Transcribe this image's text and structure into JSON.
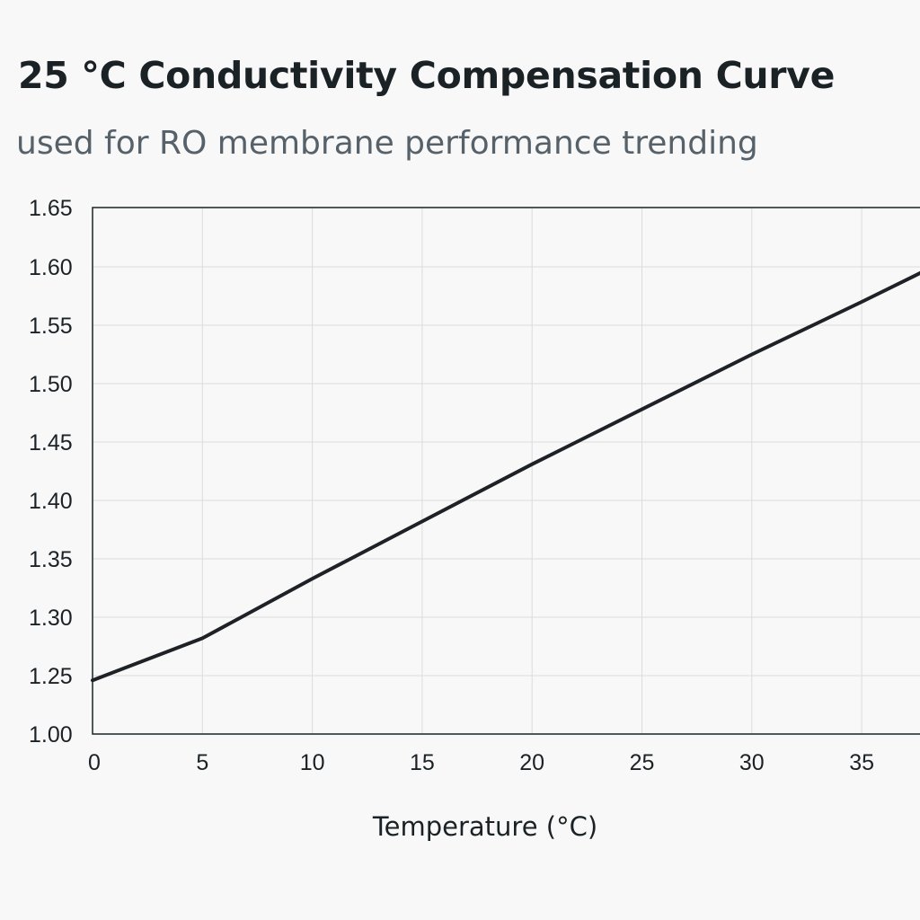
{
  "title": "25 °C Conductivity Compensation Curve",
  "subtitle": "used for RO membrane performance trending",
  "chart_data": {
    "type": "line",
    "title": "25 °C Conductivity Compensation Curve",
    "subtitle": "used for RO membrane performance trending",
    "xlabel": "Temperature (°C)",
    "ylabel": "",
    "x_ticks": [
      "0",
      "5",
      "10",
      "15",
      "20",
      "25",
      "30",
      "35"
    ],
    "y_ticks": [
      "1.00",
      "1.25",
      "1.30",
      "1.35",
      "1.40",
      "1.45",
      "1.50",
      "1.55",
      "1.60",
      "1.65"
    ],
    "grid": true,
    "legend": "none",
    "line_color": "#1e2226",
    "grid_color": "#dcdcdc",
    "series": [
      {
        "x": [
          0,
          5,
          10,
          15,
          20,
          25,
          30,
          35,
          37.7
        ],
        "y": [
          1.23,
          1.282,
          1.333,
          1.382,
          1.431,
          1.478,
          1.525,
          1.57,
          1.595
        ]
      }
    ]
  }
}
